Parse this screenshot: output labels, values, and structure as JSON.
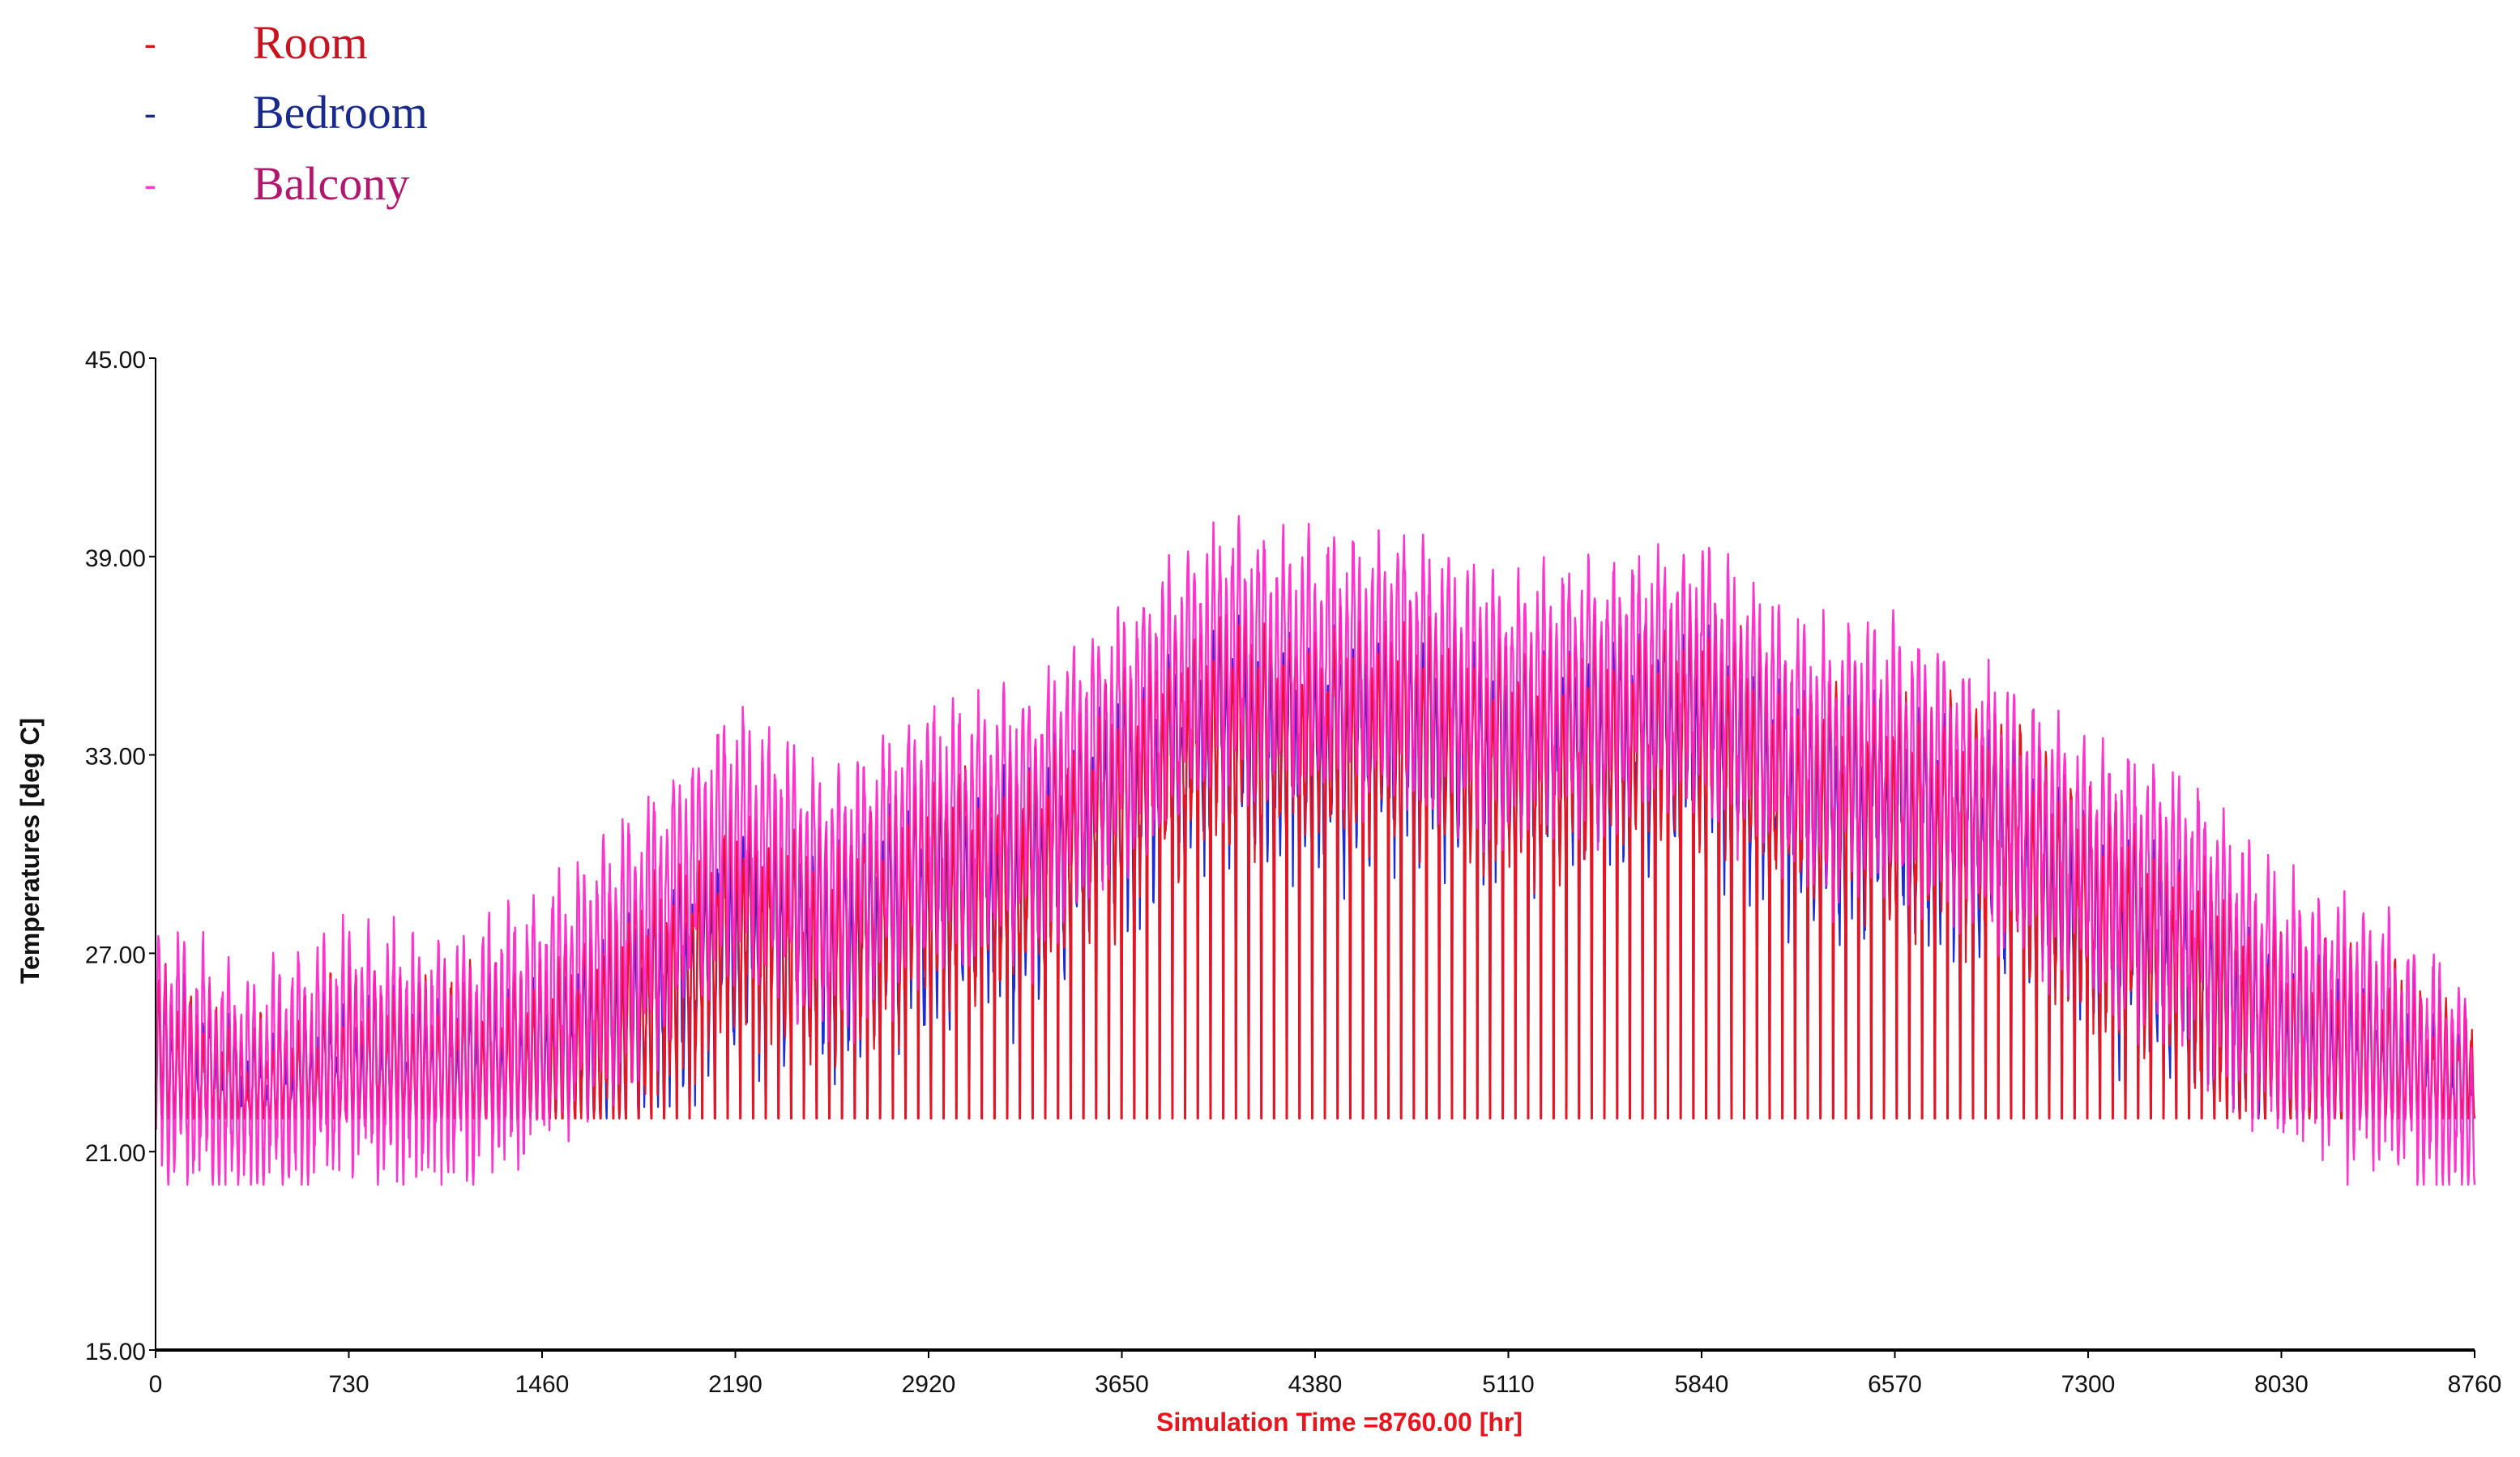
{
  "chart_data": {
    "type": "line",
    "title": "",
    "xlabel": "Simulation Time =8760.00 [hr]",
    "ylabel": "Temperatures  [deg C]",
    "xlim": [
      0,
      8760
    ],
    "ylim": [
      15,
      45
    ],
    "x_ticks": [
      "0",
      "730",
      "1460",
      "2190",
      "2920",
      "3650",
      "4380",
      "5110",
      "5840",
      "6570",
      "7300",
      "8030",
      "8760"
    ],
    "y_ticks": [
      "45.00",
      "39.00",
      "33.00",
      "27.00",
      "21.00",
      "15.00"
    ],
    "grid": false,
    "legend_position": "top-left",
    "series": [
      {
        "name": "Room",
        "color": "#e8141e",
        "min_value": 22,
        "daily_peak_envelope": {
          "x": [
            0,
            365,
            730,
            1095,
            1460,
            1825,
            2190,
            2555,
            2920,
            3285,
            3650,
            4015,
            4380,
            4745,
            5110,
            5475,
            5840,
            6205,
            6570,
            6935,
            7300,
            7665,
            8030,
            8395,
            8760
          ],
          "y": [
            26.0,
            24.0,
            25.5,
            25.5,
            26.0,
            28.0,
            30.5,
            30.0,
            31.5,
            32.0,
            34.5,
            36.5,
            36.0,
            36.5,
            35.5,
            36.0,
            36.5,
            34.5,
            34.0,
            33.5,
            31.0,
            29.5,
            27.0,
            26.0,
            24.5
          ]
        }
      },
      {
        "name": "Bedroom",
        "color": "#1a2dd8",
        "min_value": 22,
        "daily_peak_envelope": {
          "x": [
            0,
            365,
            730,
            1095,
            1460,
            1825,
            2190,
            2555,
            2920,
            3285,
            3650,
            4015,
            4380,
            4745,
            5110,
            5475,
            5840,
            6205,
            6570,
            6935,
            7300,
            7665,
            8030,
            8395,
            8760
          ],
          "y": [
            25.5,
            23.5,
            25.0,
            25.0,
            25.5,
            27.5,
            30.0,
            29.5,
            31.0,
            31.5,
            34.0,
            36.0,
            35.5,
            36.0,
            35.0,
            35.5,
            36.0,
            34.0,
            33.5,
            33.0,
            30.5,
            29.0,
            26.5,
            25.5,
            24.0
          ]
        }
      },
      {
        "name": "Balcony",
        "color": "#ff1ec8",
        "min_value": 20,
        "daily_peak_envelope": {
          "x": [
            0,
            365,
            730,
            1095,
            1460,
            1825,
            2190,
            2555,
            2920,
            3285,
            3650,
            4015,
            4380,
            4745,
            5110,
            5475,
            5840,
            6205,
            6570,
            6935,
            7300,
            7665,
            8030,
            8395,
            8760
          ],
          "y": [
            27.0,
            25.5,
            27.0,
            26.5,
            28.0,
            30.5,
            33.5,
            31.5,
            33.5,
            34.0,
            36.5,
            39.0,
            38.5,
            38.5,
            37.5,
            38.0,
            38.5,
            36.0,
            36.0,
            34.5,
            32.5,
            31.5,
            28.5,
            27.5,
            25.0
          ]
        }
      }
    ]
  }
}
